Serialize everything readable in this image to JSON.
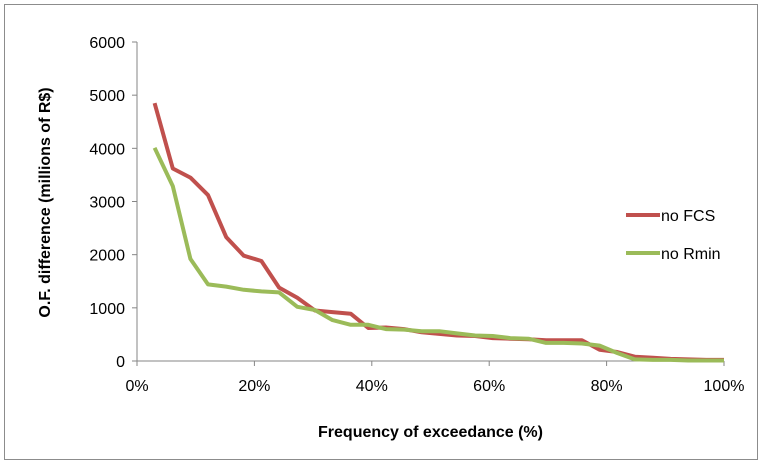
{
  "chart_data": {
    "type": "line",
    "xlabel": "Frequency of exceedance (%)",
    "ylabel": "O.F. difference (millions of R$)",
    "xlim": [
      0,
      100
    ],
    "ylim": [
      0,
      6000
    ],
    "x_ticks": [
      0,
      20,
      40,
      60,
      80,
      100
    ],
    "x_tick_labels": [
      "0%",
      "20%",
      "40%",
      "60%",
      "80%",
      "100%"
    ],
    "y_ticks": [
      0,
      1000,
      2000,
      3000,
      4000,
      5000,
      6000
    ],
    "y_tick_labels": [
      "0",
      "1000",
      "2000",
      "3000",
      "4000",
      "5000",
      "6000"
    ],
    "grid": false,
    "legend_position": "right",
    "series": [
      {
        "name": "no FCS",
        "color": "#c0504d",
        "x": [
          3.0,
          6.1,
          9.1,
          12.1,
          15.2,
          18.2,
          21.2,
          24.2,
          27.3,
          30.3,
          33.3,
          36.4,
          39.4,
          42.4,
          45.5,
          48.5,
          51.5,
          54.5,
          57.6,
          60.6,
          63.6,
          66.7,
          69.7,
          72.7,
          75.8,
          78.8,
          81.8,
          84.8,
          87.9,
          90.9,
          93.9,
          97.0,
          100.0
        ],
        "values": [
          4850,
          3620,
          3450,
          3120,
          2330,
          1980,
          1880,
          1380,
          1190,
          950,
          920,
          890,
          620,
          630,
          600,
          540,
          510,
          480,
          470,
          430,
          420,
          410,
          390,
          390,
          390,
          210,
          170,
          80,
          60,
          40,
          30,
          20,
          20
        ]
      },
      {
        "name": "no Rmin",
        "color": "#9bbb59",
        "x": [
          3.0,
          6.1,
          9.1,
          12.1,
          15.2,
          18.2,
          21.2,
          24.2,
          27.3,
          30.3,
          33.3,
          36.4,
          39.4,
          42.4,
          45.5,
          48.5,
          51.5,
          54.5,
          57.6,
          60.6,
          63.6,
          66.7,
          69.7,
          72.7,
          75.8,
          78.8,
          81.8,
          84.8,
          87.9,
          90.9,
          93.9,
          97.0,
          100.0
        ],
        "values": [
          4010,
          3290,
          1920,
          1440,
          1400,
          1340,
          1310,
          1290,
          1020,
          960,
          770,
          680,
          680,
          600,
          590,
          560,
          560,
          520,
          480,
          470,
          430,
          420,
          340,
          340,
          330,
          290,
          150,
          30,
          20,
          20,
          10,
          10,
          10
        ]
      }
    ]
  }
}
